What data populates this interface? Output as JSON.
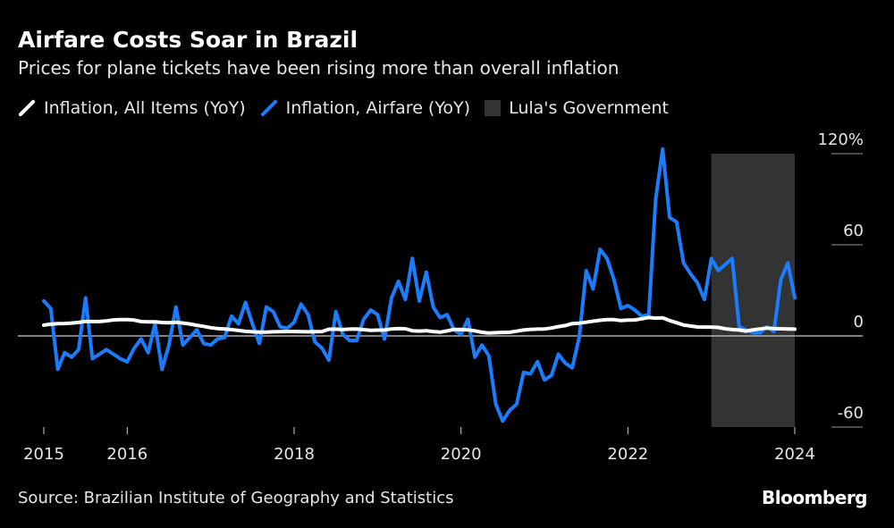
{
  "title": "Airfare Costs Soar in Brazil",
  "subtitle": "Prices for plane tickets have been rising more than overall inflation",
  "source": "Source: Brazilian Institute of Geography and Statistics",
  "brand": "Bloomberg",
  "chart_data": {
    "type": "line",
    "start_month": "2015-01",
    "frequency": "monthly",
    "x_ticks": [
      "2015",
      "2016",
      "2018",
      "2020",
      "2022",
      "2024"
    ],
    "y_ticks": [
      {
        "value": 120,
        "label": "120%"
      },
      {
        "value": 60,
        "label": "60"
      },
      {
        "value": 0,
        "label": "0"
      },
      {
        "value": -60,
        "label": "-60"
      }
    ],
    "ylim": [
      -60,
      120
    ],
    "legend_placement": "top-left",
    "series": [
      {
        "name": "Inflation, All Items (YoY)",
        "color": "#ffffff",
        "values": [
          7.1,
          7.7,
          8.1,
          8.2,
          8.5,
          8.9,
          9.6,
          9.5,
          9.5,
          9.9,
          10.5,
          10.7,
          10.7,
          10.4,
          9.4,
          9.3,
          9.3,
          8.8,
          8.7,
          9.0,
          8.5,
          7.9,
          7.0,
          6.3,
          5.4,
          4.8,
          4.6,
          4.1,
          3.6,
          3.0,
          2.7,
          2.5,
          2.5,
          2.7,
          2.8,
          2.9,
          2.9,
          2.8,
          2.7,
          2.8,
          2.9,
          4.4,
          4.5,
          4.2,
          4.5,
          4.6,
          4.1,
          3.7,
          3.8,
          3.9,
          4.6,
          4.9,
          4.7,
          3.4,
          3.2,
          3.4,
          2.9,
          2.5,
          3.3,
          4.3,
          4.2,
          4.0,
          3.3,
          2.4,
          1.9,
          2.1,
          2.3,
          2.4,
          3.1,
          3.9,
          4.3,
          4.5,
          4.6,
          5.2,
          6.1,
          6.8,
          8.1,
          8.4,
          9.0,
          9.7,
          10.3,
          10.7,
          10.7,
          10.1,
          10.4,
          10.5,
          11.3,
          12.1,
          11.7,
          11.9,
          10.1,
          8.7,
          7.2,
          6.5,
          5.9,
          5.8,
          5.8,
          5.6,
          4.7,
          4.2,
          3.9,
          3.2,
          4.0,
          4.6,
          5.2,
          4.8,
          4.7,
          4.6,
          4.5
        ]
      },
      {
        "name": "Inflation, Airfare (YoY)",
        "color": "#1a7cff",
        "values": [
          23,
          18,
          -22,
          -11,
          -14,
          -9,
          25,
          -15,
          -12,
          -9,
          -12,
          -15,
          -17,
          -8,
          -2,
          -11,
          8,
          -22,
          -6,
          19,
          -6,
          -1,
          4,
          -5,
          -6,
          -2,
          -1,
          13,
          8,
          22,
          8,
          -5,
          19,
          16,
          6,
          5,
          9,
          21,
          14,
          -4,
          -8,
          -16,
          16,
          1,
          -3,
          -3,
          11,
          17,
          14,
          -2,
          25,
          36,
          24,
          51,
          23,
          42,
          19,
          12,
          14,
          4,
          1,
          11,
          -14,
          -6,
          -13,
          -45,
          -56,
          -49,
          -45,
          -24,
          -25,
          -17,
          -29,
          -26,
          -12,
          -18,
          -21,
          -1,
          43,
          31,
          57,
          51,
          37,
          18,
          20,
          17,
          13,
          14,
          90,
          123,
          78,
          75,
          48,
          41,
          35,
          24,
          51,
          43,
          47,
          51,
          6,
          4,
          2,
          2,
          6,
          3,
          37,
          48,
          25
        ]
      }
    ],
    "shaded_period": {
      "name": "Lula's Government",
      "start": "2023-01",
      "end": "2024-01",
      "color": "#333333"
    }
  }
}
